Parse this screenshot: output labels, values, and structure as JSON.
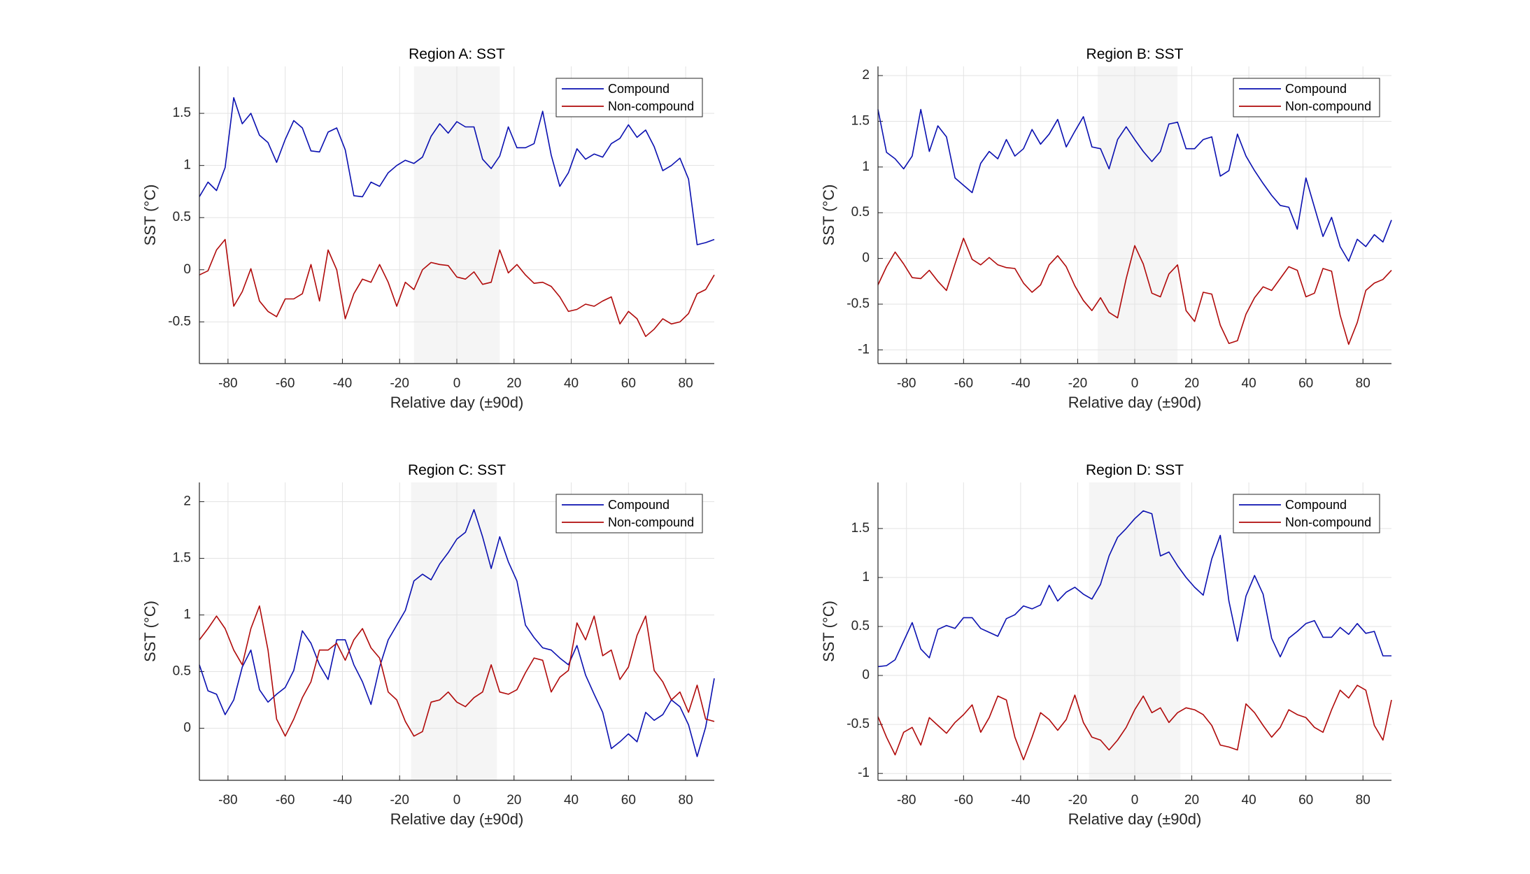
{
  "colors": {
    "compound": "#0a10b0",
    "non_compound": "#b00a0a",
    "grid": "#e3e3e3",
    "shade": "#f5f5f5",
    "axis": "#262626"
  },
  "chart_data": [
    {
      "type": "line",
      "title": "Region A: SST",
      "xlabel": "Relative day (±90d)",
      "ylabel": "SST (°C)",
      "xlim": [
        -90,
        90
      ],
      "ylim": [
        -0.9,
        1.95
      ],
      "xticks": [
        "-80",
        "-60",
        "-40",
        "-20",
        "0",
        "20",
        "40",
        "60",
        "80"
      ],
      "yticks": [
        "-0.5",
        "0",
        "0.5",
        "1",
        "1.5"
      ],
      "grid": true,
      "legend": "top-right",
      "shaded_window": [
        -15,
        15
      ],
      "x": [
        -90,
        -87,
        -84,
        -81,
        -78,
        -75,
        -72,
        -69,
        -66,
        -63,
        -60,
        -57,
        -54,
        -51,
        -48,
        -45,
        -42,
        -39,
        -36,
        -33,
        -30,
        -27,
        -24,
        -21,
        -18,
        -15,
        -12,
        -9,
        -6,
        -3,
        0,
        3,
        6,
        9,
        12,
        15,
        18,
        21,
        24,
        27,
        30,
        33,
        36,
        39,
        42,
        45,
        48,
        51,
        54,
        57,
        60,
        63,
        66,
        69,
        72,
        75,
        78,
        81,
        84,
        87,
        90
      ],
      "series": [
        {
          "name": "Compound",
          "values": [
            0.7,
            0.84,
            0.76,
            0.98,
            1.65,
            1.4,
            1.5,
            1.29,
            1.22,
            1.03,
            1.25,
            1.43,
            1.36,
            1.14,
            1.13,
            1.32,
            1.36,
            1.15,
            0.71,
            0.7,
            0.84,
            0.8,
            0.93,
            1.0,
            1.05,
            1.02,
            1.08,
            1.28,
            1.4,
            1.31,
            1.42,
            1.37,
            1.37,
            1.06,
            0.97,
            1.09,
            1.37,
            1.17,
            1.17,
            1.21,
            1.52,
            1.1,
            0.8,
            0.93,
            1.16,
            1.06,
            1.11,
            1.08,
            1.21,
            1.26,
            1.39,
            1.27,
            1.34,
            1.18,
            0.95,
            1.0,
            1.07,
            0.87,
            0.24,
            0.26,
            0.29
          ]
        },
        {
          "name": "Non-compound",
          "values": [
            -0.05,
            -0.01,
            0.19,
            0.29,
            -0.35,
            -0.21,
            0.01,
            -0.3,
            -0.4,
            -0.45,
            -0.28,
            -0.28,
            -0.23,
            0.05,
            -0.3,
            0.19,
            0.0,
            -0.47,
            -0.23,
            -0.09,
            -0.12,
            0.05,
            -0.12,
            -0.35,
            -0.12,
            -0.19,
            0.0,
            0.07,
            0.05,
            0.04,
            -0.07,
            -0.09,
            -0.02,
            -0.14,
            -0.12,
            0.19,
            -0.03,
            0.05,
            -0.05,
            -0.13,
            -0.12,
            -0.16,
            -0.26,
            -0.4,
            -0.38,
            -0.33,
            -0.35,
            -0.3,
            -0.26,
            -0.52,
            -0.4,
            -0.47,
            -0.64,
            -0.57,
            -0.47,
            -0.52,
            -0.5,
            -0.42,
            -0.23,
            -0.19,
            -0.05
          ]
        }
      ]
    },
    {
      "type": "line",
      "title": "Region B: SST",
      "xlabel": "Relative day (±90d)",
      "ylabel": "SST (°C)",
      "xlim": [
        -90,
        90
      ],
      "ylim": [
        -1.15,
        2.1
      ],
      "xticks": [
        "-80",
        "-60",
        "-40",
        "-20",
        "0",
        "20",
        "40",
        "60",
        "80"
      ],
      "yticks": [
        "-1",
        "-0.5",
        "0",
        "0.5",
        "1",
        "1.5",
        "2"
      ],
      "grid": true,
      "legend": "top-right",
      "shaded_window": [
        -13,
        15
      ],
      "x": [
        -90,
        -87,
        -84,
        -81,
        -78,
        -75,
        -72,
        -69,
        -66,
        -63,
        -60,
        -57,
        -54,
        -51,
        -48,
        -45,
        -42,
        -39,
        -36,
        -33,
        -30,
        -27,
        -24,
        -21,
        -18,
        -15,
        -12,
        -9,
        -6,
        -3,
        0,
        3,
        6,
        9,
        12,
        15,
        18,
        21,
        24,
        27,
        30,
        33,
        36,
        39,
        42,
        45,
        48,
        51,
        54,
        57,
        60,
        63,
        66,
        69,
        72,
        75,
        78,
        81,
        84,
        87,
        90
      ],
      "series": [
        {
          "name": "Compound",
          "values": [
            1.63,
            1.16,
            1.09,
            0.98,
            1.12,
            1.63,
            1.17,
            1.45,
            1.33,
            0.88,
            0.8,
            0.72,
            1.04,
            1.17,
            1.09,
            1.3,
            1.12,
            1.2,
            1.41,
            1.25,
            1.36,
            1.52,
            1.22,
            1.39,
            1.55,
            1.22,
            1.2,
            0.98,
            1.3,
            1.44,
            1.3,
            1.17,
            1.06,
            1.17,
            1.47,
            1.49,
            1.2,
            1.2,
            1.3,
            1.33,
            0.9,
            0.96,
            1.36,
            1.12,
            0.96,
            0.82,
            0.69,
            0.58,
            0.56,
            0.32,
            0.88,
            0.56,
            0.24,
            0.45,
            0.13,
            -0.03,
            0.21,
            0.13,
            0.26,
            0.18,
            0.42
          ]
        },
        {
          "name": "Non-compound",
          "values": [
            -0.29,
            -0.09,
            0.07,
            -0.06,
            -0.21,
            -0.22,
            -0.13,
            -0.25,
            -0.35,
            -0.06,
            0.22,
            -0.01,
            -0.07,
            0.01,
            -0.07,
            -0.1,
            -0.11,
            -0.27,
            -0.37,
            -0.29,
            -0.07,
            0.03,
            -0.09,
            -0.3,
            -0.46,
            -0.57,
            -0.43,
            -0.59,
            -0.65,
            -0.22,
            0.14,
            -0.06,
            -0.38,
            -0.42,
            -0.17,
            -0.07,
            -0.57,
            -0.69,
            -0.37,
            -0.39,
            -0.73,
            -0.93,
            -0.9,
            -0.61,
            -0.43,
            -0.31,
            -0.35,
            -0.22,
            -0.09,
            -0.13,
            -0.42,
            -0.38,
            -0.11,
            -0.14,
            -0.62,
            -0.94,
            -0.7,
            -0.35,
            -0.27,
            -0.23,
            -0.13
          ]
        }
      ]
    },
    {
      "type": "line",
      "title": "Region C: SST",
      "xlabel": "Relative day (±90d)",
      "ylabel": "SST (°C)",
      "xlim": [
        -90,
        90
      ],
      "ylim": [
        -0.46,
        2.17
      ],
      "xticks": [
        "-80",
        "-60",
        "-40",
        "-20",
        "0",
        "20",
        "40",
        "60",
        "80"
      ],
      "yticks": [
        "0",
        "0.5",
        "1",
        "1.5",
        "2"
      ],
      "grid": true,
      "legend": "top-right",
      "shaded_window": [
        -16,
        14
      ],
      "x": [
        -90,
        -87,
        -84,
        -81,
        -78,
        -75,
        -72,
        -69,
        -66,
        -63,
        -60,
        -57,
        -54,
        -51,
        -48,
        -45,
        -42,
        -39,
        -36,
        -33,
        -30,
        -27,
        -24,
        -21,
        -18,
        -15,
        -12,
        -9,
        -6,
        -3,
        0,
        3,
        6,
        9,
        12,
        15,
        18,
        21,
        24,
        27,
        30,
        33,
        36,
        39,
        42,
        45,
        48,
        51,
        54,
        57,
        60,
        63,
        66,
        69,
        72,
        75,
        78,
        81,
        84,
        87,
        90
      ],
      "series": [
        {
          "name": "Compound",
          "values": [
            0.56,
            0.33,
            0.3,
            0.12,
            0.25,
            0.54,
            0.69,
            0.34,
            0.23,
            0.3,
            0.36,
            0.51,
            0.86,
            0.75,
            0.56,
            0.43,
            0.78,
            0.78,
            0.56,
            0.41,
            0.21,
            0.54,
            0.78,
            0.91,
            1.04,
            1.3,
            1.36,
            1.31,
            1.45,
            1.55,
            1.67,
            1.73,
            1.93,
            1.69,
            1.41,
            1.69,
            1.47,
            1.3,
            0.91,
            0.8,
            0.71,
            0.69,
            0.62,
            0.56,
            0.73,
            0.47,
            0.3,
            0.14,
            -0.18,
            -0.12,
            -0.05,
            -0.12,
            0.14,
            0.07,
            0.12,
            0.25,
            0.19,
            0.03,
            -0.25,
            0.01,
            0.44
          ]
        },
        {
          "name": "Non-compound",
          "values": [
            0.78,
            0.88,
            0.99,
            0.88,
            0.69,
            0.56,
            0.88,
            1.08,
            0.69,
            0.08,
            -0.07,
            0.08,
            0.27,
            0.41,
            0.69,
            0.69,
            0.75,
            0.6,
            0.78,
            0.88,
            0.71,
            0.62,
            0.32,
            0.25,
            0.06,
            -0.07,
            -0.03,
            0.23,
            0.25,
            0.32,
            0.23,
            0.19,
            0.27,
            0.32,
            0.56,
            0.32,
            0.3,
            0.34,
            0.49,
            0.62,
            0.6,
            0.32,
            0.45,
            0.51,
            0.93,
            0.78,
            0.99,
            0.64,
            0.69,
            0.43,
            0.54,
            0.82,
            0.99,
            0.51,
            0.41,
            0.25,
            0.32,
            0.14,
            0.38,
            0.08,
            0.06
          ]
        }
      ]
    },
    {
      "type": "line",
      "title": "Region D: SST",
      "xlabel": "Relative day (±90d)",
      "ylabel": "SST (°C)",
      "xlim": [
        -90,
        90
      ],
      "ylim": [
        -1.07,
        1.97
      ],
      "xticks": [
        "-80",
        "-60",
        "-40",
        "-20",
        "0",
        "20",
        "40",
        "60",
        "80"
      ],
      "yticks": [
        "-1",
        "-0.5",
        "0",
        "0.5",
        "1",
        "1.5"
      ],
      "grid": true,
      "legend": "top-right",
      "shaded_window": [
        -16,
        16
      ],
      "x": [
        -90,
        -87,
        -84,
        -81,
        -78,
        -75,
        -72,
        -69,
        -66,
        -63,
        -60,
        -57,
        -54,
        -51,
        -48,
        -45,
        -42,
        -39,
        -36,
        -33,
        -30,
        -27,
        -24,
        -21,
        -18,
        -15,
        -12,
        -9,
        -6,
        -3,
        0,
        3,
        6,
        9,
        12,
        15,
        18,
        21,
        24,
        27,
        30,
        33,
        36,
        39,
        42,
        45,
        48,
        51,
        54,
        57,
        60,
        63,
        66,
        69,
        72,
        75,
        78,
        81,
        84,
        87,
        90
      ],
      "series": [
        {
          "name": "Compound",
          "values": [
            0.09,
            0.1,
            0.16,
            0.35,
            0.54,
            0.27,
            0.18,
            0.47,
            0.51,
            0.48,
            0.59,
            0.59,
            0.48,
            0.44,
            0.4,
            0.58,
            0.62,
            0.71,
            0.68,
            0.72,
            0.92,
            0.76,
            0.85,
            0.9,
            0.83,
            0.78,
            0.93,
            1.22,
            1.41,
            1.5,
            1.6,
            1.68,
            1.65,
            1.22,
            1.26,
            1.12,
            1.0,
            0.9,
            0.82,
            1.19,
            1.43,
            0.76,
            0.35,
            0.81,
            1.02,
            0.83,
            0.38,
            0.19,
            0.38,
            0.45,
            0.53,
            0.56,
            0.39,
            0.39,
            0.49,
            0.42,
            0.53,
            0.43,
            0.45,
            0.2,
            0.2
          ]
        },
        {
          "name": "Non-compound",
          "values": [
            -0.42,
            -0.63,
            -0.81,
            -0.58,
            -0.53,
            -0.71,
            -0.43,
            -0.51,
            -0.59,
            -0.48,
            -0.4,
            -0.3,
            -0.58,
            -0.43,
            -0.21,
            -0.25,
            -0.63,
            -0.86,
            -0.63,
            -0.38,
            -0.45,
            -0.56,
            -0.45,
            -0.2,
            -0.48,
            -0.63,
            -0.66,
            -0.76,
            -0.66,
            -0.53,
            -0.35,
            -0.21,
            -0.38,
            -0.33,
            -0.48,
            -0.38,
            -0.33,
            -0.35,
            -0.4,
            -0.51,
            -0.71,
            -0.73,
            -0.76,
            -0.29,
            -0.38,
            -0.51,
            -0.63,
            -0.53,
            -0.35,
            -0.4,
            -0.43,
            -0.53,
            -0.58,
            -0.35,
            -0.15,
            -0.23,
            -0.1,
            -0.15,
            -0.51,
            -0.66,
            -0.25
          ]
        }
      ]
    }
  ]
}
